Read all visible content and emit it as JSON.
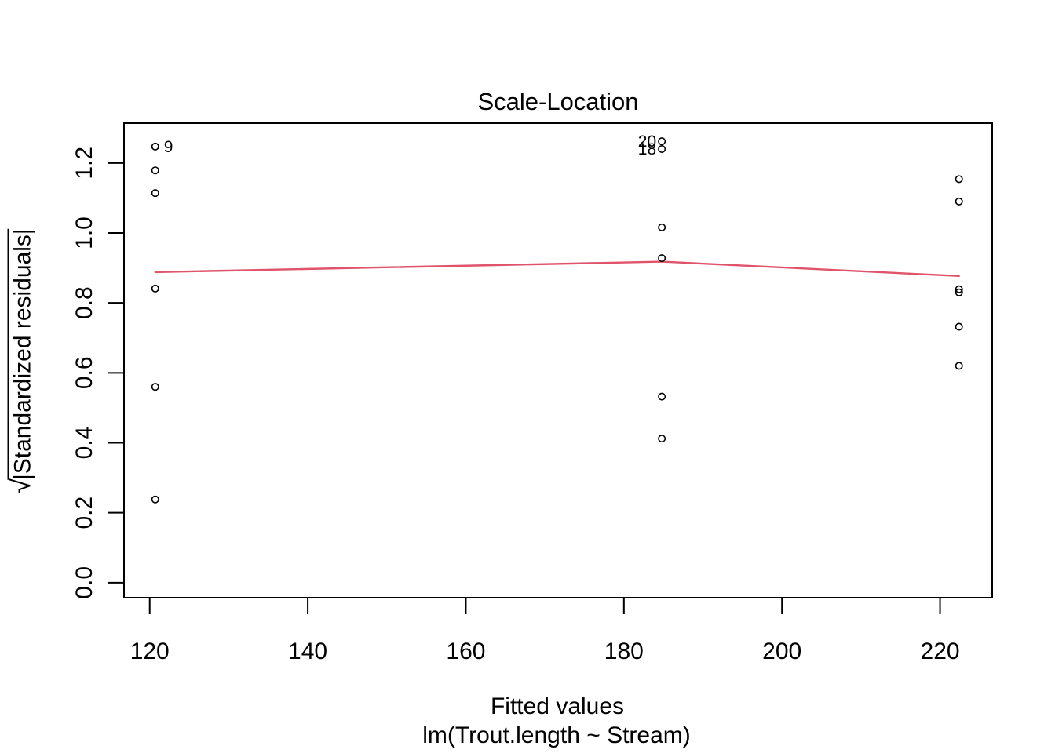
{
  "chart_data": {
    "type": "scatter",
    "title": "Scale-Location",
    "xlabel": "Fitted values",
    "xlabel_subtitle": "lm(Trout.length ~ Stream)",
    "ylabel_radical": "√",
    "ylabel_text": "|Standardized residuals|",
    "xlim": [
      116.75,
      226.6
    ],
    "ylim": [
      -0.043,
      1.314
    ],
    "x_ticks": [
      120,
      140,
      160,
      180,
      200,
      220
    ],
    "y_ticks": [
      "0.0",
      "0.2",
      "0.4",
      "0.6",
      "0.8",
      "1.0",
      "1.2"
    ],
    "grid": false,
    "legend": "none",
    "point_color": "#000000",
    "smooth_color": "#DF536B",
    "background_color": "#FFFFFF",
    "points": [
      {
        "x": 120.7,
        "y": 1.247,
        "label": "9",
        "label_side": "right"
      },
      {
        "x": 120.7,
        "y": 1.179
      },
      {
        "x": 120.7,
        "y": 1.114
      },
      {
        "x": 120.7,
        "y": 0.841
      },
      {
        "x": 120.7,
        "y": 0.56
      },
      {
        "x": 120.7,
        "y": 0.238
      },
      {
        "x": 184.8,
        "y": 1.262,
        "label": "20",
        "label_side": "left"
      },
      {
        "x": 184.8,
        "y": 1.24,
        "label": "18",
        "label_side": "left"
      },
      {
        "x": 184.8,
        "y": 1.016
      },
      {
        "x": 184.8,
        "y": 0.928
      },
      {
        "x": 184.8,
        "y": 0.532
      },
      {
        "x": 184.8,
        "y": 0.412
      },
      {
        "x": 222.4,
        "y": 1.154
      },
      {
        "x": 222.4,
        "y": 1.09
      },
      {
        "x": 222.4,
        "y": 0.839
      },
      {
        "x": 222.4,
        "y": 0.83
      },
      {
        "x": 222.4,
        "y": 0.732
      },
      {
        "x": 222.4,
        "y": 0.62
      }
    ],
    "smooth_line": [
      {
        "x": 120.7,
        "y": 0.888
      },
      {
        "x": 184.8,
        "y": 0.918
      },
      {
        "x": 222.4,
        "y": 0.877
      }
    ]
  }
}
